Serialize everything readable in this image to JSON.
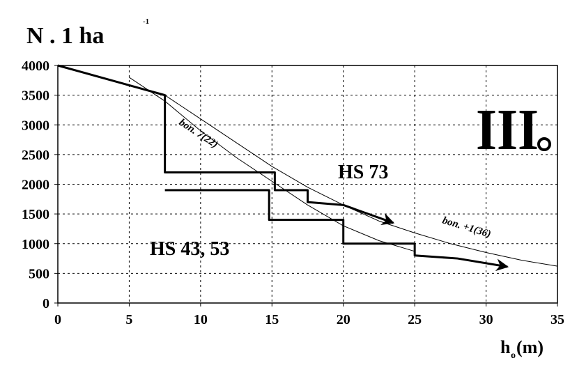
{
  "chart_data": {
    "type": "line",
    "y_label": "N . 1 ha",
    "y_label_sup": "-1",
    "x_label": "h",
    "x_label_sub": "o",
    "x_label_unit": "(m)",
    "annotation": "III",
    "xlim": [
      0,
      35
    ],
    "xticks": [
      0,
      5,
      10,
      15,
      20,
      25,
      30,
      35
    ],
    "ylim": [
      0,
      4000
    ],
    "yticks": [
      0,
      500,
      1000,
      1500,
      2000,
      2500,
      3000,
      3500,
      4000
    ],
    "grid": true,
    "series": [
      {
        "name": "HS 73",
        "color": "#000000",
        "style": "thick",
        "arrow": true,
        "x": [
          0,
          7.5,
          7.5,
          15.2,
          15.2,
          17.5,
          17.5,
          20,
          23.5
        ],
        "values": [
          4000,
          3500,
          2200,
          2200,
          1900,
          1900,
          1700,
          1650,
          1350
        ]
      },
      {
        "name": "HS 43, 53",
        "color": "#000000",
        "style": "thick",
        "arrow": true,
        "x": [
          7.5,
          14.8,
          14.8,
          20,
          20,
          25,
          25,
          28,
          31.5
        ],
        "values": [
          1900,
          1900,
          1400,
          1400,
          1000,
          1000,
          800,
          750,
          610
        ]
      },
      {
        "name": "bon. 7(22)",
        "color": "#000000",
        "style": "thin",
        "arrow": false,
        "x": [
          5,
          7.5,
          10,
          12.5,
          15,
          17.5,
          20,
          22.5,
          25
        ],
        "values": [
          3800,
          3400,
          2900,
          2450,
          2050,
          1650,
          1300,
          1050,
          870
        ]
      },
      {
        "name": "bon. +1(36)",
        "color": "#000000",
        "style": "thin",
        "arrow": false,
        "x": [
          7.5,
          10,
          12.5,
          15,
          17.5,
          20,
          22.5,
          25,
          27.5,
          30,
          32.5,
          35
        ],
        "values": [
          3500,
          3100,
          2700,
          2300,
          1950,
          1650,
          1380,
          1180,
          1000,
          850,
          720,
          620
        ]
      }
    ]
  }
}
